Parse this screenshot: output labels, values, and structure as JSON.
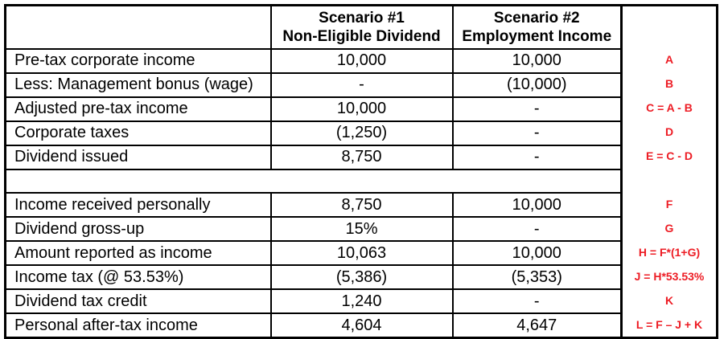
{
  "table": {
    "header": {
      "label": "",
      "scenario1": {
        "line1": "Scenario #1",
        "line2": "Non-Eligible Dividend"
      },
      "scenario2": {
        "line1": "Scenario #2",
        "line2": "Employment Income"
      }
    },
    "rows": [
      {
        "label": "Pre-tax corporate income",
        "s1": "10,000",
        "s2": "10,000",
        "formula": "A"
      },
      {
        "label": "Less: Management bonus (wage)",
        "s1": "-",
        "s2": "(10,000)",
        "formula": "B"
      },
      {
        "label": "Adjusted pre-tax income",
        "s1": "10,000",
        "s2": "-",
        "formula": "C = A - B"
      },
      {
        "label": "Corporate taxes",
        "s1": "(1,250)",
        "s2": "-",
        "formula": "D"
      },
      {
        "label": "Dividend issued",
        "s1": "8,750",
        "s2": "-",
        "formula": "E = C - D"
      },
      {
        "label": "",
        "s1": "",
        "s2": "",
        "formula": ""
      },
      {
        "label": "Income received personally",
        "s1": "8,750",
        "s2": "10,000",
        "formula": "F"
      },
      {
        "label": "Dividend gross-up",
        "s1": "15%",
        "s2": "-",
        "formula": "G"
      },
      {
        "label": "Amount reported as income",
        "s1": "10,063",
        "s2": "10,000",
        "formula": "H = F*(1+G)"
      },
      {
        "label": "Income tax (@ 53.53%)",
        "s1": "(5,386)",
        "s2": "(5,353)",
        "formula": "J = H*53.53%"
      },
      {
        "label": "Dividend tax credit",
        "s1": "1,240",
        "s2": "-",
        "formula": "K"
      },
      {
        "label": "Personal after-tax income",
        "s1": "4,604",
        "s2": "4,647",
        "formula": "L = F – J + K"
      }
    ]
  },
  "colors": {
    "background": "#ffffff",
    "border": "#000000",
    "text": "#000000",
    "annotation_red": "#ed1c24"
  }
}
